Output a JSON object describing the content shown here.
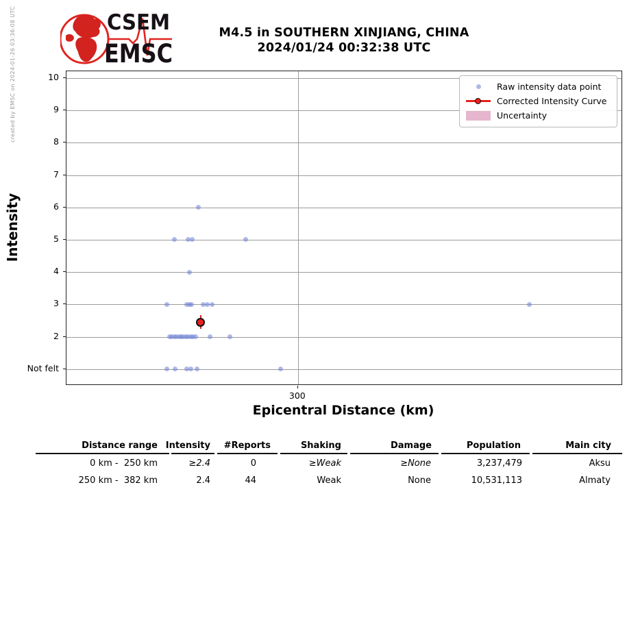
{
  "watermark": "created by EMSC on 2024-01-26 03:36:08 UTC",
  "header": {
    "logo": {
      "line1": "CSEM",
      "line2": "EMSC"
    },
    "title_line1": "M4.5 in SOUTHERN XINJIANG, CHINA",
    "title_line2": "2024/01/24 00:32:38 UTC"
  },
  "chart_data": {
    "type": "scatter",
    "title": "M4.5 in SOUTHERN XINJIANG, CHINA 2024/01/24 00:32:38 UTC",
    "xlabel": "Epicentral Distance (km)",
    "ylabel": "Intensity",
    "xlim": [
      217,
      416
    ],
    "ylim": [
      0.53,
      10.21
    ],
    "x_ticks": [
      {
        "value": 300,
        "label": "300"
      }
    ],
    "y_ticks": [
      {
        "value": 1,
        "label": "Not felt"
      },
      {
        "value": 2,
        "label": "2"
      },
      {
        "value": 3,
        "label": "3"
      },
      {
        "value": 4,
        "label": "4"
      },
      {
        "value": 5,
        "label": "5"
      },
      {
        "value": 6,
        "label": "6"
      },
      {
        "value": 7,
        "label": "7"
      },
      {
        "value": 8,
        "label": "8"
      },
      {
        "value": 9,
        "label": "9"
      },
      {
        "value": 10,
        "label": "10"
      }
    ],
    "grid": true,
    "legend": {
      "position": "upper right",
      "entries": [
        {
          "label": "Raw intensity data point",
          "type": "dot",
          "color": "#aeb9e6"
        },
        {
          "label": "Corrected Intensity Curve",
          "type": "line-marker",
          "color": "#e8201e"
        },
        {
          "label": "Uncertainty",
          "type": "patch",
          "color": "#e5b6cd"
        }
      ]
    },
    "series": [
      {
        "name": "Raw intensity data point",
        "color": "#aeb9e6",
        "points": [
          [
            264.4,
            6
          ],
          [
            255.7,
            5
          ],
          [
            260.6,
            5
          ],
          [
            262.1,
            5
          ],
          [
            281.2,
            5
          ],
          [
            261.1,
            4
          ],
          [
            253.1,
            3
          ],
          [
            260.0,
            3
          ],
          [
            261.0,
            3
          ],
          [
            261.9,
            3
          ],
          [
            266.1,
            3
          ],
          [
            267.6,
            3
          ],
          [
            269.3,
            3
          ],
          [
            382.9,
            3
          ],
          [
            253.9,
            2
          ],
          [
            254.7,
            2
          ],
          [
            255.6,
            2
          ],
          [
            256.4,
            2
          ],
          [
            257.3,
            2
          ],
          [
            258.1,
            2
          ],
          [
            259.0,
            2
          ],
          [
            259.8,
            2
          ],
          [
            260.7,
            2
          ],
          [
            261.5,
            2
          ],
          [
            262.4,
            2
          ],
          [
            263.2,
            2
          ],
          [
            268.4,
            2
          ],
          [
            275.7,
            2
          ],
          [
            253.1,
            1
          ],
          [
            256.0,
            1
          ],
          [
            260.2,
            1
          ],
          [
            261.6,
            1
          ],
          [
            263.8,
            1
          ],
          [
            293.8,
            1
          ]
        ]
      },
      {
        "name": "Corrected Intensity Curve",
        "color": "#e8201e",
        "points": [
          [
            265.1,
            2.45
          ]
        ]
      }
    ],
    "not_felt_value": 1
  },
  "table": {
    "headers": [
      "Distance range",
      "Intensity",
      "#Reports",
      "Shaking",
      "Damage",
      "Population",
      "Main city"
    ],
    "rows": [
      {
        "cells": [
          "0 km -  250 km",
          "≥2.4",
          "0",
          "≥Weak",
          "≥None",
          "3,237,479",
          "Aksu"
        ],
        "italic": [
          false,
          true,
          false,
          true,
          true,
          false,
          false
        ]
      },
      {
        "cells": [
          "250 km -  382 km",
          "2.4",
          "44",
          "Weak",
          "None",
          "10,531,113",
          "Almaty"
        ],
        "italic": [
          false,
          false,
          false,
          false,
          false,
          false,
          false
        ]
      }
    ]
  }
}
